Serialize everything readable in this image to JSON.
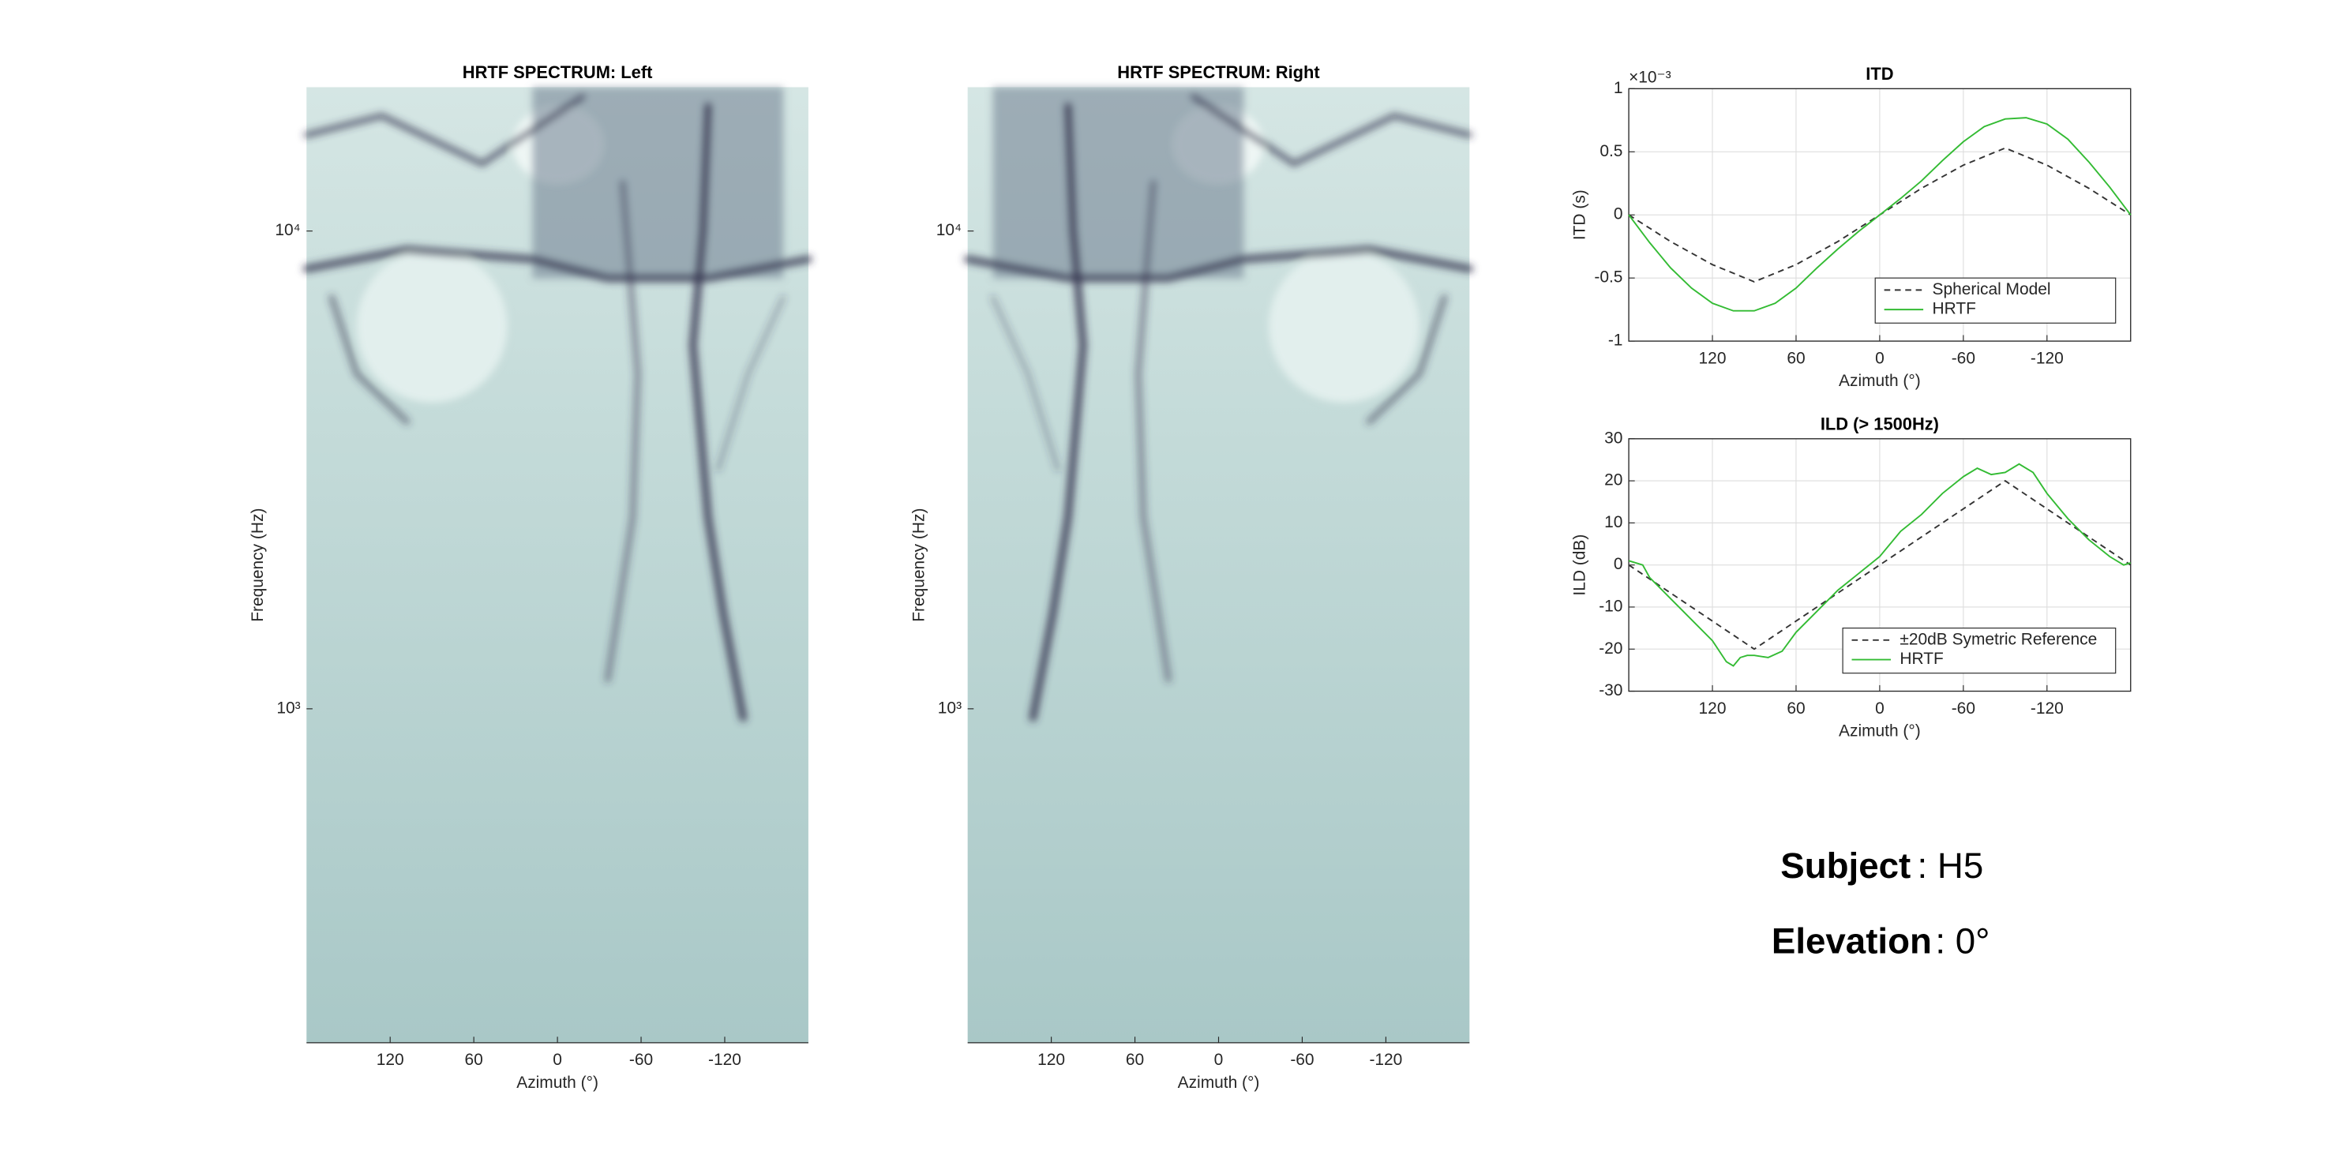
{
  "chart_data": [
    {
      "type": "spectrogram",
      "title": "HRTF SPECTRUM: Left",
      "x_label": "Azimuth (°)",
      "y_label": "Frequency (Hz)",
      "xlim": [
        180,
        -180
      ],
      "xticks": [
        120,
        60,
        0,
        -60,
        -120
      ],
      "ylim": [
        200,
        20000
      ],
      "log_y": true,
      "yticks": [
        {
          "value": 1000,
          "label": "10³"
        },
        {
          "value": 10000,
          "label": "10⁴"
        }
      ],
      "side": "left"
    },
    {
      "type": "spectrogram",
      "title": "HRTF SPECTRUM: Right",
      "x_label": "Azimuth (°)",
      "y_label": "Frequency (Hz)",
      "xlim": [
        180,
        -180
      ],
      "xticks": [
        120,
        60,
        0,
        -60,
        -120
      ],
      "ylim": [
        200,
        20000
      ],
      "log_y": true,
      "yticks": [
        {
          "value": 1000,
          "label": "10³"
        },
        {
          "value": 10000,
          "label": "10⁴"
        }
      ],
      "side": "right"
    },
    {
      "type": "line",
      "title": "ITD",
      "x_label": "Azimuth (°)",
      "y_label": "ITD (s)",
      "y_exponent_label": "×10⁻³",
      "xlim": [
        180,
        -180
      ],
      "xticks": [
        120,
        60,
        0,
        -60,
        -120
      ],
      "ylim": [
        -0.001,
        0.001
      ],
      "yticks": [
        {
          "value": -0.001,
          "label": "-1"
        },
        {
          "value": -0.0005,
          "label": "-0.5"
        },
        0,
        {
          "value": 0.0005,
          "label": "0.5"
        },
        {
          "value": 0.001,
          "label": "1"
        }
      ],
      "grid": true,
      "legend": "lower right",
      "series": [
        {
          "name": "Spherical Model",
          "color": "#333333",
          "dashed": true,
          "x": [
            180,
            150,
            120,
            90,
            60,
            30,
            0,
            -30,
            -60,
            -90,
            -120,
            -150,
            -180
          ],
          "values": [
            0,
            -0.000211,
            -0.000394,
            -0.00053,
            -0.000394,
            -0.000211,
            0,
            0.000211,
            0.000394,
            0.00053,
            0.000394,
            0.000211,
            0
          ]
        },
        {
          "name": "HRTF",
          "color": "#33bb33",
          "dashed": false,
          "x": [
            180,
            165,
            150,
            135,
            120,
            105,
            90,
            75,
            60,
            45,
            30,
            15,
            0,
            -15,
            -30,
            -45,
            -60,
            -75,
            -90,
            -105,
            -120,
            -135,
            -150,
            -165,
            -180
          ],
          "values": [
            0,
            -0.00022,
            -0.00042,
            -0.00058,
            -0.0007,
            -0.00076,
            -0.00076,
            -0.0007,
            -0.00058,
            -0.00042,
            -0.00027,
            -0.00013,
            0,
            0.00013,
            0.00027,
            0.00043,
            0.00058,
            0.0007,
            0.00076,
            0.00077,
            0.00072,
            0.0006,
            0.00042,
            0.00022,
            0
          ]
        }
      ]
    },
    {
      "type": "line",
      "title": "ILD (> 1500Hz)",
      "x_label": "Azimuth (°)",
      "y_label": "ILD (dB)",
      "xlim": [
        180,
        -180
      ],
      "xticks": [
        120,
        60,
        0,
        -60,
        -120
      ],
      "ylim": [
        -30,
        30
      ],
      "yticks": [
        -30,
        -20,
        -10,
        0,
        10,
        20,
        30
      ],
      "grid": true,
      "legend": "lower right",
      "series": [
        {
          "name": "±20dB Symetric Reference",
          "color": "#333333",
          "dashed": true,
          "x": [
            180,
            90,
            -90,
            -180
          ],
          "values": [
            0,
            -20,
            20,
            0
          ]
        },
        {
          "name": "HRTF",
          "color": "#33bb33",
          "dashed": false,
          "x": [
            180,
            170,
            165,
            150,
            135,
            120,
            110,
            105,
            100,
            95,
            90,
            80,
            70,
            60,
            45,
            30,
            15,
            0,
            -15,
            -30,
            -45,
            -60,
            -70,
            -80,
            -90,
            -100,
            -110,
            -120,
            -135,
            -150,
            -165,
            -175,
            -180
          ],
          "values": [
            1,
            0,
            -3,
            -8,
            -13,
            -18,
            -23,
            -24,
            -22,
            -21.5,
            -21.5,
            -22,
            -20.5,
            -16,
            -11,
            -6,
            -2,
            2,
            8,
            12,
            17,
            21,
            23,
            21.5,
            22,
            24,
            22,
            17,
            11,
            6,
            2,
            0,
            0.5
          ]
        }
      ]
    }
  ],
  "info": {
    "subject_label": "Subject",
    "subject_value": ": H5",
    "elevation_label": "Elevation",
    "elevation_value": ": 0°"
  }
}
